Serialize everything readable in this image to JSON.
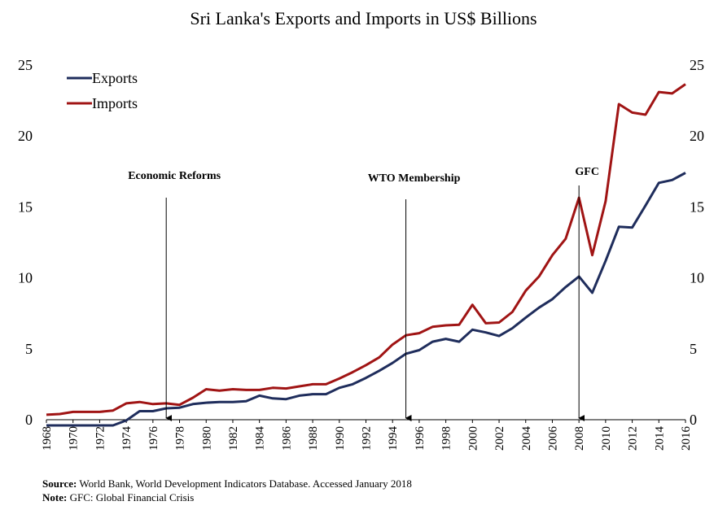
{
  "chart_data": {
    "type": "line",
    "title": "Sri Lanka's Exports and Imports in US$ Billions",
    "xlabel": "",
    "ylabel": "",
    "ylim": [
      0,
      25
    ],
    "yticks": [
      "0",
      "5",
      "10",
      "15",
      "20",
      "25"
    ],
    "xlim": [
      1968,
      2016
    ],
    "xticks": [
      "1968",
      "1970",
      "1972",
      "1974",
      "1976",
      "1978",
      "1980",
      "1982",
      "1984",
      "1986",
      "1988",
      "1990",
      "1992",
      "1994",
      "1996",
      "1998",
      "2000",
      "2002",
      "2004",
      "2006",
      "2008",
      "2010",
      "2012",
      "2014",
      "2016"
    ],
    "legend_position": "top-left",
    "grid": false,
    "x": [
      1968,
      1969,
      1970,
      1971,
      1972,
      1973,
      1974,
      1975,
      1976,
      1977,
      1978,
      1979,
      1980,
      1981,
      1982,
      1983,
      1984,
      1985,
      1986,
      1987,
      1988,
      1989,
      1990,
      1991,
      1992,
      1993,
      1994,
      1995,
      1996,
      1997,
      1998,
      1999,
      2000,
      2001,
      2002,
      2003,
      2004,
      2005,
      2006,
      2007,
      2008,
      2009,
      2010,
      2011,
      2012,
      2013,
      2014,
      2015,
      2016
    ],
    "series": [
      {
        "name": "Exports",
        "color": "#1f2d5c",
        "values": [
          -0.4,
          -0.4,
          -0.4,
          -0.4,
          -0.4,
          -0.4,
          -0.05,
          0.6,
          0.6,
          0.8,
          0.85,
          1.1,
          1.2,
          1.25,
          1.25,
          1.3,
          1.7,
          1.5,
          1.45,
          1.7,
          1.8,
          1.8,
          2.25,
          2.5,
          2.95,
          3.45,
          4.0,
          4.65,
          4.9,
          5.5,
          5.7,
          5.5,
          6.35,
          6.15,
          5.9,
          6.45,
          7.2,
          7.9,
          8.5,
          9.35,
          10.1,
          8.95,
          11.2,
          13.6,
          13.55,
          15.1,
          16.7,
          16.9,
          17.4
        ]
      },
      {
        "name": "Imports",
        "color": "#a01414",
        "values": [
          0.35,
          0.4,
          0.55,
          0.55,
          0.55,
          0.65,
          1.15,
          1.25,
          1.1,
          1.15,
          1.05,
          1.55,
          2.15,
          2.05,
          2.15,
          2.1,
          2.1,
          2.25,
          2.2,
          2.35,
          2.5,
          2.5,
          2.9,
          3.35,
          3.85,
          4.4,
          5.3,
          5.95,
          6.1,
          6.55,
          6.65,
          6.7,
          8.1,
          6.8,
          6.85,
          7.6,
          9.1,
          10.1,
          11.6,
          12.75,
          15.65,
          11.6,
          15.4,
          22.25,
          21.65,
          21.5,
          23.1,
          23.0,
          23.65
        ]
      }
    ],
    "annotations": [
      {
        "label": "Economic Reforms",
        "x": 1977
      },
      {
        "label": "WTO Membership",
        "x": 1995
      },
      {
        "label": "GFC",
        "x": 2008
      }
    ]
  },
  "footnotes": {
    "source_label": "Source:",
    "source_text": " World Bank, World Development Indicators Database. Accessed January 2018",
    "note_label": "Note:",
    "note_text": " GFC: Global Financial Crisis"
  }
}
